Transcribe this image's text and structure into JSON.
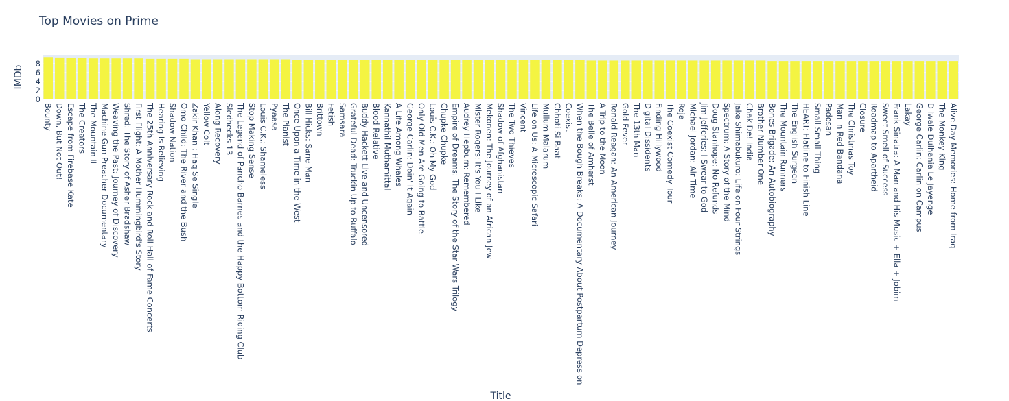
{
  "chart_data": {
    "type": "bar",
    "title": "Top Movies on Prime",
    "xlabel": "Title",
    "ylabel": "IMDb",
    "ylim": [
      0,
      10
    ],
    "yticks": [
      0,
      2,
      4,
      6,
      8
    ],
    "grid": true,
    "bar_color": "#f4f442",
    "plot_bg": "#e5ecf6",
    "categories": [
      "Bounty",
      "Down, But Not Out!",
      "Escape from Firebase Kate",
      "The Creators",
      "The Mountain II",
      "Machine Gun Preacher Documentary",
      "Weaving the Past: Journey of Discovery",
      "Shred: The Story of Asher Bradshaw",
      "First Flight: A Mother Hummingbird's Story",
      "The 25th Anniversary Rock and Roll Hall of Fame Concerts",
      "Hearing Is Believing",
      "Shadow Nation",
      "Omo Child: The River and the Bush",
      "Zakir Khan : Haq Se Single",
      "Yellow Colt",
      "Along Recovery",
      "Sledhecks 13",
      "The Legend of Pancho Barnes and the Happy Bottom Riding Club",
      "Stop Making Sense",
      "Louis C.K.: Shameless",
      "Pyaasa",
      "The Pianist",
      "Once Upon a Time in the West",
      "Bill Hicks: Sane Man",
      "Brittown",
      "Fetish",
      "Samsara",
      "Grateful Dead: Truckin Up to Buffalo",
      "Buddy Hackett Live and Uncensored",
      "Blood Relative",
      "Kannathil Muthamittal",
      "A Life Among Whales",
      "George Carlin: Doin' It Again",
      "Only Old Men Are Going to Battle",
      "Louis C.K.: Oh My God",
      "Chupke Chupke",
      "Empire of Dreams: The Story of the Star Wars Trilogy",
      "Audrey Hepburn: Remembered",
      "Mister Rogers: It's You I Like",
      "Mekonen: The Journey of an African Jew",
      "Shadow of Afghanistan",
      "The Two Thieves",
      "Vincent",
      "Life on Us: A Microscopic Safari",
      "Mullum Malarum",
      "Chhoti Si Baat",
      "Coexist",
      "When the Bough Breaks: A Documentary About Postpartum Depression",
      "The Belle of Amherst",
      "A Trip to the Moon",
      "Ronald Reagan: An American Journey",
      "Gold Fever",
      "The 13th Man",
      "Digital Dissidents",
      "Finding Hillywood",
      "The Coexist Comedy Tour",
      "Roja",
      "Michael Jordan: Air Time",
      "Jim Jefferies: I Swear to God",
      "Doug Stanhope: No Refunds",
      "Spectrum: A Story of the Mind",
      "Jake Shimabukuro: Life on Four Strings",
      "Chak De! India",
      "Brother Number One",
      "Bones Brigade: An Autobiography",
      "The Mountain Runners",
      "The English Surgeon",
      "HEART: Flatline to Finish Line",
      "Small Small Thing",
      "Padosan",
      "Man in Red Bandana",
      "The Christmas Toy",
      "Closure",
      "Roadmap to Apartheid",
      "Sweet Smell of Success",
      "Frank Sinatra: A Man and His Music + Ella + Jobim",
      "Lakay",
      "George Carlin: Carlin on Campus",
      "Dilwale Dulhania Le Jayenge",
      "The Monkey King",
      "Alive Day Memories: Home from Iraq"
    ],
    "values": [
      9.5,
      9.4,
      9.3,
      9.3,
      9.2,
      9.2,
      9.2,
      9.2,
      9.2,
      9.1,
      9.1,
      9.1,
      9.1,
      9.0,
      9.0,
      9.0,
      9.0,
      9.0,
      9.0,
      9.0,
      9.0,
      9.0,
      8.9,
      8.9,
      8.9,
      8.9,
      8.9,
      8.9,
      8.9,
      8.9,
      8.9,
      8.9,
      8.9,
      8.9,
      8.8,
      8.8,
      8.8,
      8.8,
      8.8,
      8.8,
      8.8,
      8.8,
      8.8,
      8.8,
      8.8,
      8.8,
      8.8,
      8.8,
      8.7,
      8.7,
      8.7,
      8.7,
      8.7,
      8.7,
      8.7,
      8.7,
      8.7,
      8.7,
      8.7,
      8.7,
      8.7,
      8.7,
      8.7,
      8.7,
      8.6,
      8.6,
      8.6,
      8.6,
      8.6,
      8.6,
      8.6,
      8.6,
      8.6,
      8.6,
      8.6,
      8.6,
      8.6,
      8.6,
      8.6,
      8.6,
      8.6
    ]
  }
}
